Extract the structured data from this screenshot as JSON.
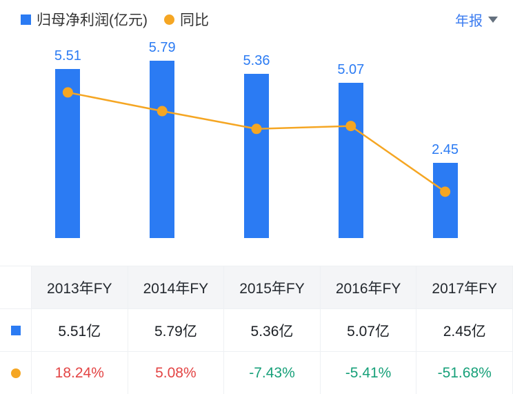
{
  "header": {
    "legend": [
      {
        "label": "归母净利润(亿元)",
        "marker": "square",
        "color": "#2b7bf3"
      },
      {
        "label": "同比",
        "marker": "circle",
        "color": "#f5a623"
      }
    ],
    "period_selector": {
      "label": "年报",
      "icon": "chevron-down-icon"
    }
  },
  "colors": {
    "bar": "#2b7bf3",
    "line": "#f5a623",
    "bar_value_label": "#2b7bf3",
    "period_label": "#3a7bf0",
    "positive_pct": "#e34444",
    "negative_pct": "#17a079"
  },
  "chart_data": {
    "type": "bar",
    "categories": [
      "2013年FY",
      "2014年FY",
      "2015年FY",
      "2016年FY",
      "2017年FY"
    ],
    "series": [
      {
        "name": "归母净利润(亿元)",
        "type": "bar",
        "unit": "亿元",
        "color": "#2b7bf3",
        "values": [
          5.51,
          5.79,
          5.36,
          5.07,
          2.45
        ]
      },
      {
        "name": "同比",
        "type": "line",
        "unit": "%",
        "color": "#f5a623",
        "values": [
          18.24,
          5.08,
          -7.43,
          -5.41,
          -51.68
        ]
      }
    ],
    "bar_value_labels": [
      "5.51",
      "5.79",
      "5.36",
      "5.07",
      "2.45"
    ],
    "title": "",
    "xlabel": "",
    "ylabel": "",
    "ylim_bar": [
      0,
      5.79
    ],
    "line_range": [
      -60,
      25
    ],
    "grid": false,
    "axes_hidden": true,
    "legend_position": "top-left"
  },
  "table": {
    "corner": "",
    "headers": [
      "2013年FY",
      "2014年FY",
      "2015年FY",
      "2016年FY",
      "2017年FY"
    ],
    "rows": [
      {
        "marker": "square",
        "marker_color": "#2b7bf3",
        "values": [
          "5.51亿",
          "5.79亿",
          "5.36亿",
          "5.07亿",
          "2.45亿"
        ],
        "value_colors": [
          "#1b1f24",
          "#1b1f24",
          "#1b1f24",
          "#1b1f24",
          "#1b1f24"
        ]
      },
      {
        "marker": "circle",
        "marker_color": "#f5a623",
        "values": [
          "18.24%",
          "5.08%",
          "-7.43%",
          "-5.41%",
          "-51.68%"
        ],
        "value_colors": [
          "#e34444",
          "#e34444",
          "#17a079",
          "#17a079",
          "#17a079"
        ]
      }
    ]
  }
}
